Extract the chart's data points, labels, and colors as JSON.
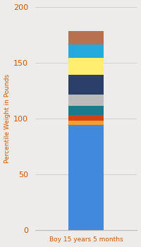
{
  "category": "Boy 15 years 5 months",
  "segments": [
    {
      "value": 94,
      "color": "#4189DC"
    },
    {
      "value": 4,
      "color": "#F0A030"
    },
    {
      "value": 5,
      "color": "#D94010"
    },
    {
      "value": 8,
      "color": "#1B7A8C"
    },
    {
      "value": 10,
      "color": "#BBBBBB"
    },
    {
      "value": 18,
      "color": "#2B3F6A"
    },
    {
      "value": 15,
      "color": "#FFEE70"
    },
    {
      "value": 12,
      "color": "#25AADD"
    },
    {
      "value": 12,
      "color": "#B87050"
    }
  ],
  "ylim": [
    0,
    200
  ],
  "yticks": [
    0,
    50,
    100,
    150,
    200
  ],
  "ylabel": "Percentile Weight in Pounds",
  "xlabel": "Boy 15 years 5 months",
  "background_color": "#EEECEA",
  "bar_width": 0.35,
  "title": ""
}
